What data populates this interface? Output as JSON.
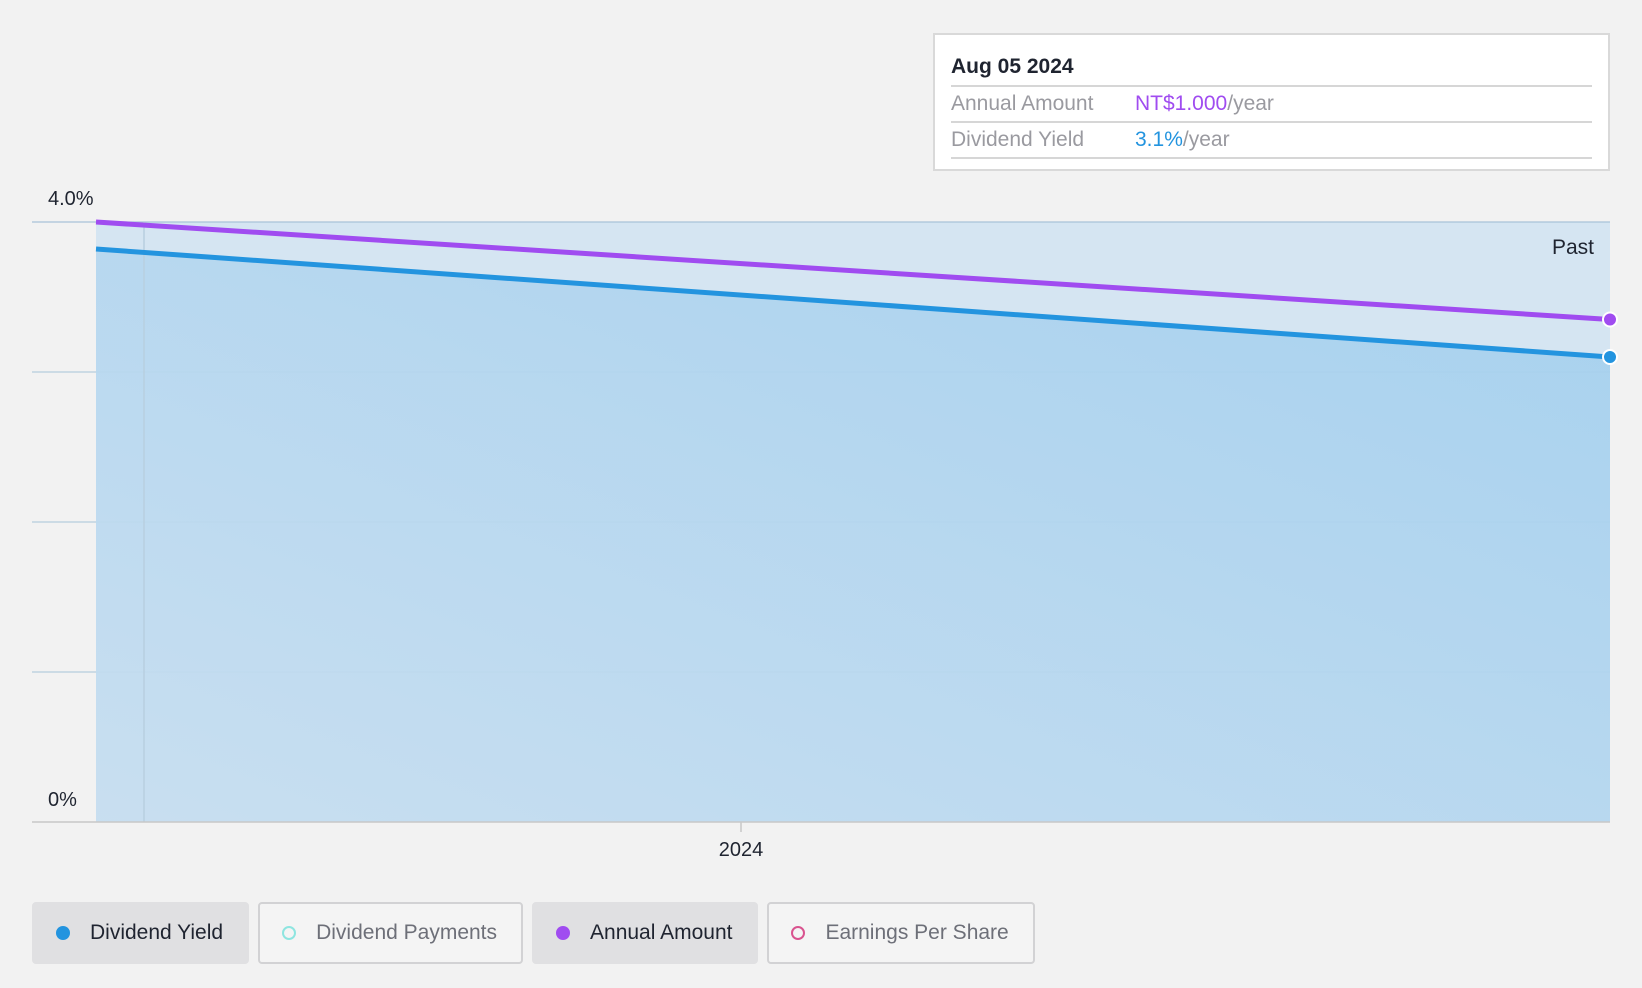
{
  "tooltip": {
    "date": "Aug 05 2024",
    "rows": [
      {
        "label": "Annual Amount",
        "value": "NT$1.000",
        "unit": "/year",
        "color": "#a04cf0"
      },
      {
        "label": "Dividend Yield",
        "value": "3.1%",
        "unit": "/year",
        "color": "#2394df"
      }
    ]
  },
  "past_label": "Past",
  "legend": [
    {
      "label": "Dividend Yield",
      "color": "#2394df",
      "active": true
    },
    {
      "label": "Dividend Payments",
      "color": "#8ee5e0",
      "active": false
    },
    {
      "label": "Annual Amount",
      "color": "#a04cf0",
      "active": true
    },
    {
      "label": "Earnings Per Share",
      "color": "#d9538f",
      "active": false
    }
  ],
  "chart_data": {
    "type": "area",
    "y_tick_labels": [
      "4.0%",
      "0%"
    ],
    "ylim": [
      0,
      4.0
    ],
    "x_tick_labels": [
      "2024"
    ],
    "series": [
      {
        "name": "Dividend Yield",
        "color": "#2394df",
        "start_value": 3.82,
        "end_value": 3.1,
        "filled": true
      },
      {
        "name": "Annual Amount",
        "color": "#a04cf0",
        "start_value": 4.0,
        "end_value": 3.35,
        "filled": false
      }
    ],
    "grid": true
  }
}
